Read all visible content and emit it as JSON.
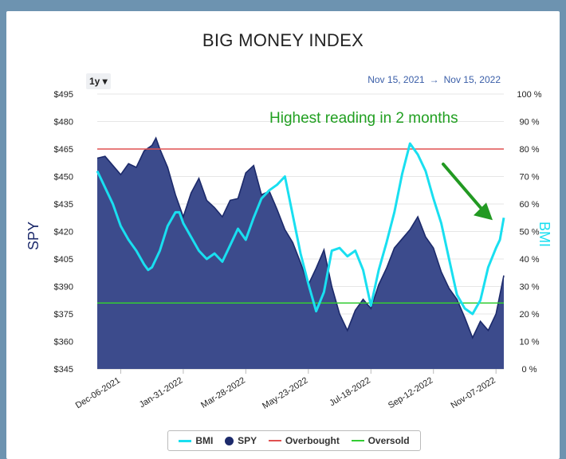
{
  "chart_data": {
    "type": "area",
    "title": "BIG MONEY INDEX",
    "range_button": "1y ▾",
    "date_range": {
      "from": "Nov 15, 2021",
      "arrow": "→",
      "to": "Nov 15, 2022"
    },
    "y_left": {
      "label": "SPY",
      "ticks": [
        "$495",
        "$480",
        "$465",
        "$450",
        "$435",
        "$420",
        "$405",
        "$390",
        "$375",
        "$360",
        "$345"
      ],
      "ylim": [
        345,
        495
      ]
    },
    "y_right": {
      "label": "BMI",
      "ticks": [
        "100 %",
        "90 %",
        "80 %",
        "70 %",
        "60 %",
        "50 %",
        "40 %",
        "30 %",
        "20 %",
        "10 %",
        "0 %"
      ],
      "ylim": [
        0,
        100
      ]
    },
    "x_ticks": [
      "Dec-06-2021",
      "Jan-31-2022",
      "Mar-28-2022",
      "May-23-2022",
      "Jul-18-2022",
      "Sep-12-2022",
      "Nov-07-2022"
    ],
    "x_tick_weeks": [
      3,
      11,
      19,
      27,
      35,
      43,
      51
    ],
    "x_range_weeks": [
      0,
      52
    ],
    "series": [
      {
        "name": "BMI",
        "color": "#19dff0",
        "axis": "right",
        "values": [
          [
            0,
            72
          ],
          [
            1,
            66
          ],
          [
            2,
            60
          ],
          [
            3,
            52
          ],
          [
            4,
            47
          ],
          [
            5,
            43
          ],
          [
            6,
            38
          ],
          [
            6.5,
            36
          ],
          [
            7,
            37
          ],
          [
            8,
            43
          ],
          [
            9,
            52
          ],
          [
            10,
            57
          ],
          [
            10.5,
            57
          ],
          [
            11,
            53
          ],
          [
            12,
            48
          ],
          [
            13,
            43
          ],
          [
            14,
            40
          ],
          [
            15,
            42
          ],
          [
            16,
            39
          ],
          [
            17,
            45
          ],
          [
            18,
            51
          ],
          [
            19,
            47
          ],
          [
            20,
            55
          ],
          [
            21,
            62
          ],
          [
            22,
            65
          ],
          [
            23,
            67
          ],
          [
            24,
            70
          ],
          [
            25,
            56
          ],
          [
            26,
            42
          ],
          [
            27,
            31
          ],
          [
            28,
            21
          ],
          [
            29,
            28
          ],
          [
            30,
            43
          ],
          [
            31,
            44
          ],
          [
            32,
            41
          ],
          [
            33,
            43
          ],
          [
            34,
            36
          ],
          [
            35,
            23
          ],
          [
            36,
            36
          ],
          [
            37,
            46
          ],
          [
            38,
            57
          ],
          [
            39,
            71
          ],
          [
            40,
            82
          ],
          [
            41,
            78
          ],
          [
            42,
            72
          ],
          [
            43,
            62
          ],
          [
            44,
            53
          ],
          [
            45,
            40
          ],
          [
            46,
            27
          ],
          [
            47,
            22
          ],
          [
            48,
            20
          ],
          [
            49,
            25
          ],
          [
            50,
            37
          ],
          [
            51,
            44
          ],
          [
            51.5,
            47
          ],
          [
            52,
            55
          ]
        ]
      },
      {
        "name": "SPY",
        "color": "#1c2a6b",
        "fill": "#3c4b8c",
        "axis": "left",
        "values": [
          [
            0,
            460
          ],
          [
            1,
            461
          ],
          [
            2,
            456
          ],
          [
            3,
            451
          ],
          [
            4,
            457
          ],
          [
            5,
            455
          ],
          [
            6,
            464
          ],
          [
            7,
            467
          ],
          [
            7.5,
            471
          ],
          [
            8,
            465
          ],
          [
            9,
            455
          ],
          [
            10,
            440
          ],
          [
            11,
            428
          ],
          [
            12,
            441
          ],
          [
            13,
            449
          ],
          [
            14,
            437
          ],
          [
            15,
            433
          ],
          [
            16,
            428
          ],
          [
            17,
            437
          ],
          [
            18,
            438
          ],
          [
            19,
            452
          ],
          [
            20,
            456
          ],
          [
            21,
            440
          ],
          [
            22,
            442
          ],
          [
            23,
            432
          ],
          [
            24,
            421
          ],
          [
            25,
            414
          ],
          [
            26,
            403
          ],
          [
            27,
            391
          ],
          [
            28,
            400
          ],
          [
            29,
            410
          ],
          [
            30,
            390
          ],
          [
            31,
            375
          ],
          [
            32,
            366
          ],
          [
            33,
            377
          ],
          [
            34,
            383
          ],
          [
            35,
            378
          ],
          [
            36,
            391
          ],
          [
            37,
            400
          ],
          [
            38,
            411
          ],
          [
            39,
            416
          ],
          [
            40,
            421
          ],
          [
            41,
            428
          ],
          [
            42,
            417
          ],
          [
            43,
            411
          ],
          [
            44,
            398
          ],
          [
            45,
            389
          ],
          [
            46,
            383
          ],
          [
            47,
            373
          ],
          [
            48,
            362
          ],
          [
            49,
            371
          ],
          [
            50,
            366
          ],
          [
            51,
            375
          ],
          [
            52,
            396
          ]
        ]
      },
      {
        "name": "Overbought",
        "color": "#e05050",
        "axis": "right",
        "value": 80
      },
      {
        "name": "Oversold",
        "color": "#33cc33",
        "axis": "right",
        "value": 24
      }
    ],
    "annotation": {
      "text": "Highest reading in 2 months",
      "color": "#22a022",
      "arrow_color": "#229922",
      "points_to_week": 52,
      "points_to_value": 55
    },
    "legend": [
      {
        "name": "BMI",
        "symbol": "line",
        "color": "#19dff0"
      },
      {
        "name": "SPY",
        "symbol": "dot",
        "color": "#1c2a6b"
      },
      {
        "name": "Overbought",
        "symbol": "line",
        "color": "#e05050"
      },
      {
        "name": "Oversold",
        "symbol": "line",
        "color": "#33cc33"
      }
    ]
  }
}
